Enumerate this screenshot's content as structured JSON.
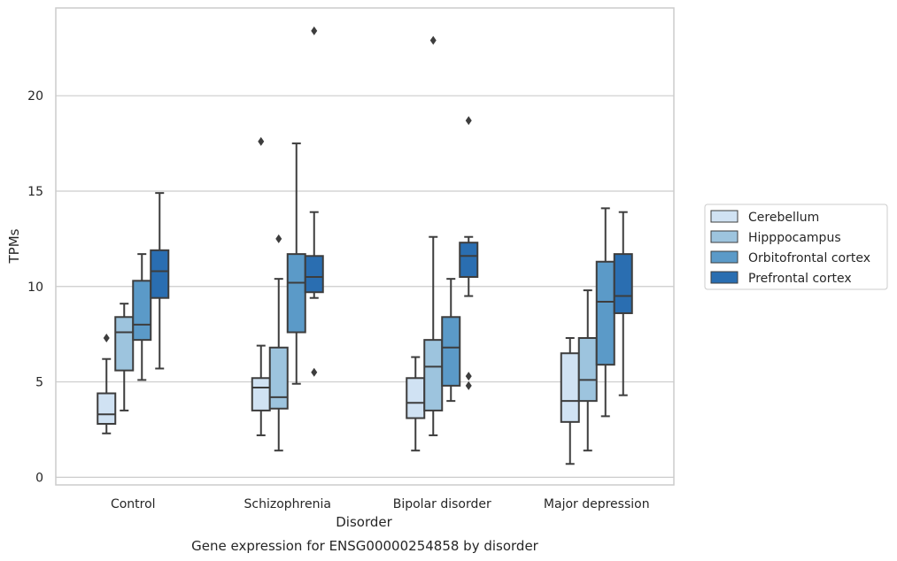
{
  "chart_data": {
    "type": "box",
    "title": "Gene expression for ENSG00000254858 by disorder",
    "xlabel": "Disorder",
    "ylabel": "TPMs",
    "ylim": [
      -0.4,
      24.6
    ],
    "yticks": [
      0,
      5,
      10,
      15,
      20
    ],
    "grid": "horizontal",
    "legend_position": "right",
    "categories": [
      "Control",
      "Schizophrenia",
      "Bipolar disorder",
      "Major depression"
    ],
    "series": [
      {
        "name": "Cerebellum",
        "color": "#d0e2f3",
        "boxes": [
          {
            "whislo": 2.3,
            "q1": 2.8,
            "med": 3.3,
            "q3": 4.4,
            "whishi": 6.2,
            "fliers": [
              7.3
            ]
          },
          {
            "whislo": 2.2,
            "q1": 3.5,
            "med": 4.7,
            "q3": 5.2,
            "whishi": 6.9,
            "fliers": [
              17.6
            ]
          },
          {
            "whislo": 1.4,
            "q1": 3.1,
            "med": 3.9,
            "q3": 5.2,
            "whishi": 6.3,
            "fliers": []
          },
          {
            "whislo": 0.7,
            "q1": 2.9,
            "med": 4.0,
            "q3": 6.5,
            "whishi": 7.3,
            "fliers": []
          }
        ]
      },
      {
        "name": "Hipppocampus",
        "color": "#9dc4de",
        "boxes": [
          {
            "whislo": 3.5,
            "q1": 5.6,
            "med": 7.6,
            "q3": 8.4,
            "whishi": 9.1,
            "fliers": []
          },
          {
            "whislo": 1.4,
            "q1": 3.6,
            "med": 4.2,
            "q3": 6.8,
            "whishi": 10.4,
            "fliers": [
              12.5
            ]
          },
          {
            "whislo": 2.2,
            "q1": 3.5,
            "med": 5.8,
            "q3": 7.2,
            "whishi": 12.6,
            "fliers": []
          },
          {
            "whislo": 1.4,
            "q1": 4.0,
            "med": 5.1,
            "q3": 7.3,
            "whishi": 9.8,
            "fliers": []
          }
        ]
      },
      {
        "name": "Orbitofrontal cortex",
        "color": "#5b9ac8",
        "boxes": [
          {
            "whislo": 5.1,
            "q1": 7.2,
            "med": 8.0,
            "q3": 10.3,
            "whishi": 11.7,
            "fliers": []
          },
          {
            "whislo": 4.9,
            "q1": 7.6,
            "med": 10.2,
            "q3": 11.7,
            "whishi": 17.5,
            "fliers": []
          },
          {
            "whislo": 4.0,
            "q1": 4.8,
            "med": 6.8,
            "q3": 8.4,
            "whishi": 10.4,
            "fliers": []
          },
          {
            "whislo": 3.2,
            "q1": 5.9,
            "med": 9.2,
            "q3": 11.3,
            "whishi": 14.1,
            "fliers": []
          }
        ]
      },
      {
        "name": "Prefrontal cortex",
        "color": "#2a6eb1",
        "boxes": [
          {
            "whislo": 5.7,
            "q1": 9.4,
            "med": 10.8,
            "q3": 11.9,
            "whishi": 14.9,
            "fliers": []
          },
          {
            "whislo": 9.4,
            "q1": 9.7,
            "med": 10.5,
            "q3": 11.6,
            "whishi": 13.9,
            "fliers": [
              5.5,
              23.4
            ]
          },
          {
            "whislo": 9.5,
            "q1": 10.5,
            "med": 11.6,
            "q3": 12.3,
            "whishi": 12.6,
            "fliers": [
              4.8,
              5.3,
              18.7
            ]
          },
          {
            "whislo": 4.3,
            "q1": 8.6,
            "med": 9.5,
            "q3": 11.7,
            "whishi": 13.9,
            "fliers": []
          }
        ]
      }
    ],
    "extra_fliers": [
      {
        "category_index": 2,
        "series_index": 1,
        "value": 22.9
      }
    ]
  }
}
